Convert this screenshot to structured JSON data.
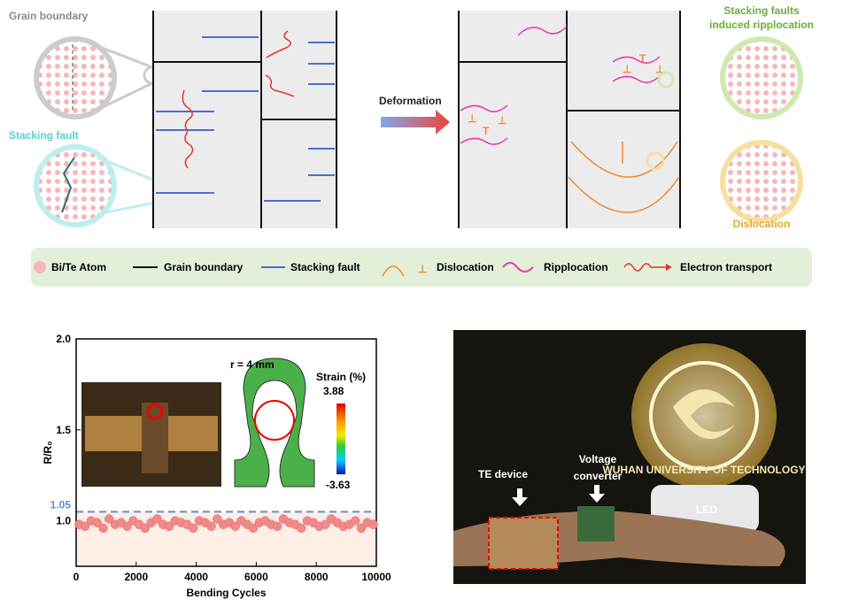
{
  "schematic": {
    "grain_boundary_label": "Grain boundary",
    "stacking_fault_label": "Stacking fault",
    "deformation_label": "Deformation",
    "ripplocation_label": [
      "Stacking faults",
      "induced ripplocation"
    ],
    "dislocation_label": "Dislocation"
  },
  "legend": {
    "items": [
      "Bi/Te Atom",
      "Grain boundary",
      "Stacking fault",
      "Dislocation",
      "Ripplocation",
      "Electron transport"
    ]
  },
  "chart_data": {
    "type": "scatter",
    "xlabel": "Bending Cycles",
    "ylabel": "R/R₀",
    "xlim": [
      0,
      10000
    ],
    "ylim": [
      0.75,
      2.0
    ],
    "xticks": [
      0,
      2000,
      4000,
      6000,
      8000,
      10000
    ],
    "yticks": [
      {
        "value": 1.0,
        "label": "1.0"
      },
      {
        "value": 1.5,
        "label": "1.5"
      },
      {
        "value": 2.0,
        "label": "2.0"
      }
    ],
    "reference_line": {
      "value": 1.05,
      "label": "1.05",
      "color": "#5b8fd6"
    },
    "series": [
      {
        "color": "#f08a8a",
        "x": [
          100,
          300,
          500,
          700,
          900,
          1100,
          1300,
          1500,
          1700,
          1900,
          2100,
          2300,
          2500,
          2700,
          2900,
          3100,
          3300,
          3500,
          3700,
          3900,
          4100,
          4300,
          4500,
          4700,
          4900,
          5100,
          5300,
          5500,
          5700,
          5900,
          6100,
          6300,
          6500,
          6700,
          6900,
          7100,
          7300,
          7500,
          7700,
          7900,
          8100,
          8300,
          8500,
          8700,
          8900,
          9100,
          9300,
          9500,
          9700,
          9900
        ],
        "values": [
          0.98,
          0.97,
          1.0,
          0.99,
          0.96,
          1.01,
          0.98,
          0.99,
          0.97,
          1.0,
          0.98,
          0.96,
          0.99,
          1.01,
          0.98,
          0.97,
          1.0,
          0.99,
          0.98,
          0.96,
          1.0,
          0.99,
          0.97,
          1.01,
          0.98,
          0.99,
          0.97,
          1.0,
          0.98,
          0.96,
          0.99,
          1.0,
          0.98,
          0.97,
          1.01,
          0.99,
          0.98,
          0.96,
          1.0,
          0.99,
          0.97,
          0.98,
          1.01,
          0.99,
          0.97,
          0.98,
          1.0,
          0.96,
          0.99,
          0.98
        ]
      }
    ],
    "inset": {
      "title": "r = 4 mm",
      "colorbar_label": "Strain (%)",
      "colorbar_max": "3.88",
      "colorbar_min": "-3.63"
    }
  },
  "photo": {
    "te_device": "TE device",
    "voltage_converter": [
      "Voltage",
      "converter"
    ],
    "led": "LED",
    "logo_text": "WUHAN UNIVERSITY OF TECHNOLOGY"
  }
}
